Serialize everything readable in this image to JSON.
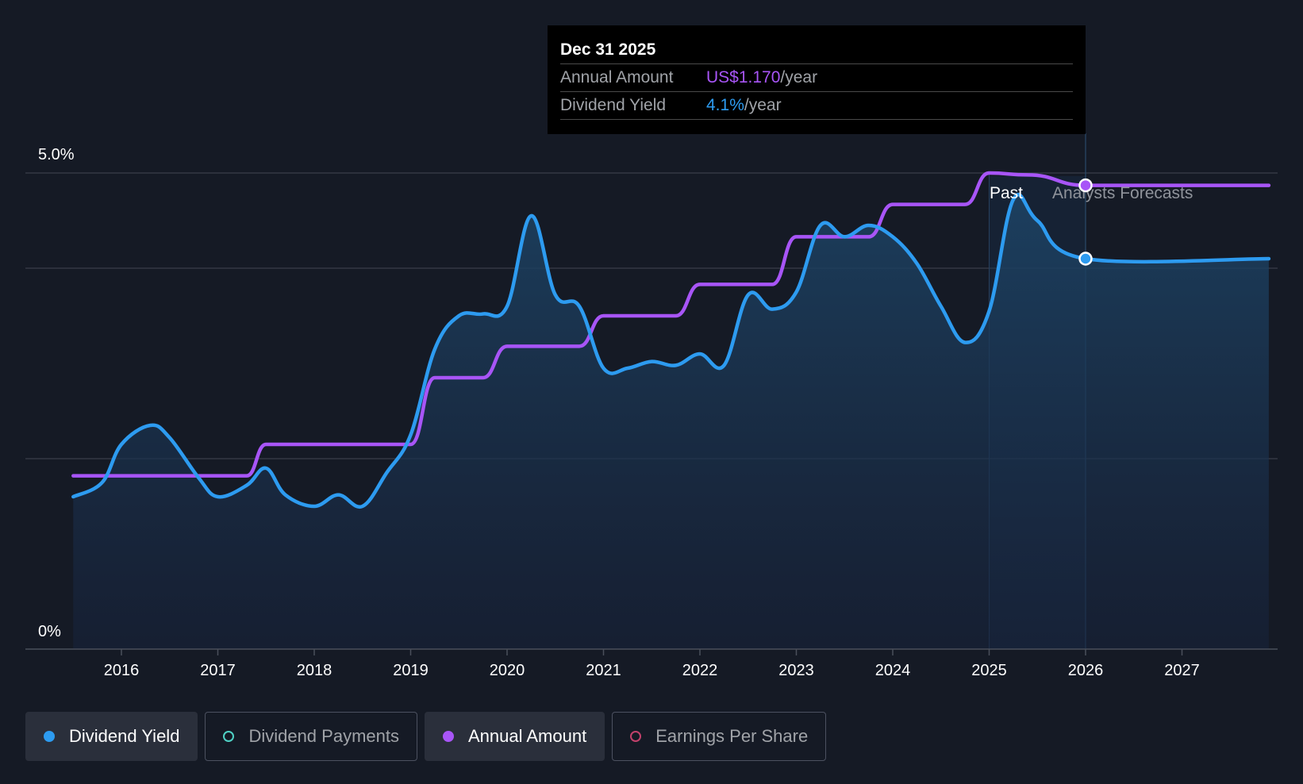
{
  "tooltip": {
    "date": "Dec 31 2025",
    "annual_amount_label": "Annual Amount",
    "annual_amount_value": "US$1.170",
    "annual_amount_unit": "/year",
    "dividend_yield_label": "Dividend Yield",
    "dividend_yield_value": "4.1%",
    "dividend_yield_unit": "/year"
  },
  "regions": {
    "past_label": "Past",
    "forecast_label": "Analysts Forecasts"
  },
  "legend": [
    {
      "label": "Dividend Yield",
      "color": "#2d9bf0",
      "active": true,
      "filled": true
    },
    {
      "label": "Dividend Payments",
      "color": "#4fd1c5",
      "active": false,
      "filled": false
    },
    {
      "label": "Annual Amount",
      "color": "#a855f7",
      "active": true,
      "filled": true
    },
    {
      "label": "Earnings Per Share",
      "color": "#c2416b",
      "active": false,
      "filled": false
    }
  ],
  "colors": {
    "yield": "#2d9bf0",
    "amount": "#a855f7",
    "background": "#151a25",
    "grid": "#3a3f4b"
  },
  "chart_data": {
    "type": "line",
    "title": "",
    "xlabel": "",
    "ylabel": "",
    "y_tick_labels": [
      "5.0%",
      "0%"
    ],
    "ylim": [
      0,
      5.0
    ],
    "xlim": [
      2015.0,
      2028.0
    ],
    "x_ticks": [
      "2016",
      "2017",
      "2018",
      "2019",
      "2020",
      "2021",
      "2022",
      "2023",
      "2024",
      "2025",
      "2026",
      "2027"
    ],
    "highlight_date": "Dec 31 2025",
    "series": [
      {
        "name": "Dividend Yield",
        "unit": "%",
        "points": [
          [
            2015.5,
            1.6
          ],
          [
            2015.8,
            1.75
          ],
          [
            2016.0,
            2.15
          ],
          [
            2016.3,
            2.35
          ],
          [
            2016.5,
            2.22
          ],
          [
            2016.8,
            1.8
          ],
          [
            2017.0,
            1.6
          ],
          [
            2017.3,
            1.72
          ],
          [
            2017.5,
            1.9
          ],
          [
            2017.7,
            1.62
          ],
          [
            2018.0,
            1.5
          ],
          [
            2018.25,
            1.62
          ],
          [
            2018.5,
            1.5
          ],
          [
            2018.75,
            1.85
          ],
          [
            2019.0,
            2.25
          ],
          [
            2019.25,
            3.15
          ],
          [
            2019.5,
            3.5
          ],
          [
            2019.75,
            3.52
          ],
          [
            2020.0,
            3.6
          ],
          [
            2020.25,
            4.55
          ],
          [
            2020.5,
            3.72
          ],
          [
            2020.75,
            3.6
          ],
          [
            2021.0,
            2.95
          ],
          [
            2021.25,
            2.95
          ],
          [
            2021.5,
            3.02
          ],
          [
            2021.75,
            2.98
          ],
          [
            2022.0,
            3.1
          ],
          [
            2022.25,
            2.98
          ],
          [
            2022.5,
            3.72
          ],
          [
            2022.75,
            3.57
          ],
          [
            2023.0,
            3.75
          ],
          [
            2023.25,
            4.45
          ],
          [
            2023.5,
            4.33
          ],
          [
            2023.75,
            4.45
          ],
          [
            2024.0,
            4.33
          ],
          [
            2024.25,
            4.05
          ],
          [
            2024.5,
            3.6
          ],
          [
            2024.75,
            3.22
          ],
          [
            2025.0,
            3.55
          ],
          [
            2025.25,
            4.72
          ],
          [
            2025.5,
            4.5
          ],
          [
            2026.0,
            4.1
          ],
          [
            2027.9,
            4.1
          ]
        ]
      },
      {
        "name": "Annual Amount",
        "unit": "US$",
        "points": [
          [
            2015.5,
            1.82
          ],
          [
            2017.3,
            1.82
          ],
          [
            2017.5,
            2.15
          ],
          [
            2019.0,
            2.15
          ],
          [
            2019.25,
            2.85
          ],
          [
            2019.75,
            2.85
          ],
          [
            2020.0,
            3.18
          ],
          [
            2020.75,
            3.18
          ],
          [
            2021.0,
            3.5
          ],
          [
            2021.75,
            3.5
          ],
          [
            2022.0,
            3.83
          ],
          [
            2022.75,
            3.83
          ],
          [
            2023.0,
            4.33
          ],
          [
            2023.75,
            4.33
          ],
          [
            2024.0,
            4.67
          ],
          [
            2024.75,
            4.67
          ],
          [
            2025.0,
            5.0
          ],
          [
            2025.4,
            4.98
          ],
          [
            2026.0,
            4.87
          ],
          [
            2027.9,
            4.87
          ]
        ]
      }
    ],
    "highlight_points": [
      {
        "series": "Annual Amount",
        "x": 2026.0,
        "y": 4.87
      },
      {
        "series": "Dividend Yield",
        "x": 2026.0,
        "y": 4.1
      }
    ]
  }
}
